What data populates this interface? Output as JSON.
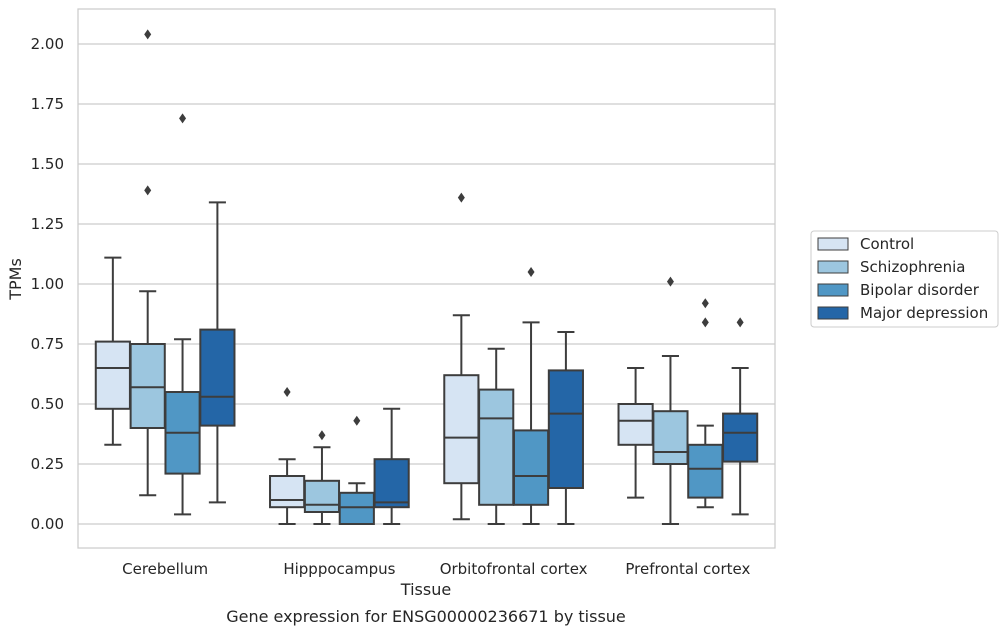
{
  "chart_data": {
    "type": "boxplot",
    "title": "Gene expression for ENSG00000236671 by tissue",
    "xlabel": "Tissue",
    "ylabel": "TPMs",
    "ylim": [
      -0.1,
      2.15
    ],
    "yticks": [
      "0.00",
      "0.25",
      "0.50",
      "0.75",
      "1.00",
      "1.25",
      "1.50",
      "1.75",
      "2.00"
    ],
    "categories": [
      "Cerebellum",
      "Hipppocampus",
      "Orbitofrontal cortex",
      "Prefrontal cortex"
    ],
    "grid": "horizontal",
    "legend_position": "right",
    "series": [
      {
        "name": "Control",
        "color": "#d6e4f3",
        "boxes": [
          {
            "whisker_low": 0.33,
            "q1": 0.48,
            "median": 0.65,
            "q3": 0.76,
            "whisker_high": 1.11,
            "outliers": []
          },
          {
            "whisker_low": 0.0,
            "q1": 0.07,
            "median": 0.1,
            "q3": 0.2,
            "whisker_high": 0.27,
            "outliers": [
              0.55
            ]
          },
          {
            "whisker_low": 0.02,
            "q1": 0.17,
            "median": 0.36,
            "q3": 0.62,
            "whisker_high": 0.87,
            "outliers": [
              1.36
            ]
          },
          {
            "whisker_low": 0.11,
            "q1": 0.33,
            "median": 0.43,
            "q3": 0.5,
            "whisker_high": 0.65,
            "outliers": []
          }
        ]
      },
      {
        "name": "Schizophrenia",
        "color": "#9cc6df",
        "boxes": [
          {
            "whisker_low": 0.12,
            "q1": 0.4,
            "median": 0.57,
            "q3": 0.75,
            "whisker_high": 0.97,
            "outliers": [
              1.39,
              2.04
            ]
          },
          {
            "whisker_low": 0.0,
            "q1": 0.05,
            "median": 0.08,
            "q3": 0.18,
            "whisker_high": 0.32,
            "outliers": [
              0.37
            ]
          },
          {
            "whisker_low": 0.0,
            "q1": 0.08,
            "median": 0.44,
            "q3": 0.56,
            "whisker_high": 0.73,
            "outliers": []
          },
          {
            "whisker_low": 0.0,
            "q1": 0.25,
            "median": 0.3,
            "q3": 0.47,
            "whisker_high": 0.7,
            "outliers": [
              1.01
            ]
          }
        ]
      },
      {
        "name": "Bipolar disorder",
        "color": "#5097c5",
        "boxes": [
          {
            "whisker_low": 0.04,
            "q1": 0.21,
            "median": 0.38,
            "q3": 0.55,
            "whisker_high": 0.77,
            "outliers": [
              1.69
            ]
          },
          {
            "whisker_low": 0.0,
            "q1": 0.0,
            "median": 0.07,
            "q3": 0.13,
            "whisker_high": 0.17,
            "outliers": [
              0.43
            ]
          },
          {
            "whisker_low": 0.0,
            "q1": 0.08,
            "median": 0.2,
            "q3": 0.39,
            "whisker_high": 0.84,
            "outliers": [
              1.05
            ]
          },
          {
            "whisker_low": 0.07,
            "q1": 0.11,
            "median": 0.23,
            "q3": 0.33,
            "whisker_high": 0.41,
            "outliers": [
              0.84,
              0.92
            ]
          }
        ]
      },
      {
        "name": "Major depression",
        "color": "#2466a7",
        "boxes": [
          {
            "whisker_low": 0.09,
            "q1": 0.41,
            "median": 0.53,
            "q3": 0.81,
            "whisker_high": 1.34,
            "outliers": []
          },
          {
            "whisker_low": 0.0,
            "q1": 0.07,
            "median": 0.09,
            "q3": 0.27,
            "whisker_high": 0.48,
            "outliers": []
          },
          {
            "whisker_low": 0.0,
            "q1": 0.15,
            "median": 0.46,
            "q3": 0.64,
            "whisker_high": 0.8,
            "outliers": []
          },
          {
            "whisker_low": 0.04,
            "q1": 0.26,
            "median": 0.38,
            "q3": 0.46,
            "whisker_high": 0.65,
            "outliers": [
              0.84
            ]
          }
        ]
      }
    ]
  }
}
